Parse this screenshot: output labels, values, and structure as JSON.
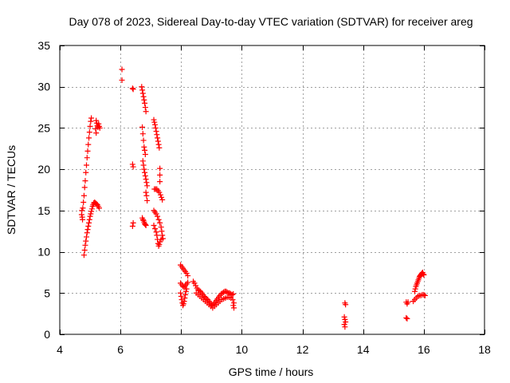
{
  "chart_data": {
    "type": "scatter",
    "title": "Day 078 of 2023, Sidereal Day-to-day VTEC variation (SDTVAR) for receiver areg",
    "xlabel": "GPS time / hours",
    "ylabel": "SDTVAR / TECUs",
    "xlim": [
      4,
      18
    ],
    "ylim": [
      0,
      35
    ],
    "x_ticks": [
      4,
      6,
      8,
      10,
      12,
      14,
      16,
      18
    ],
    "y_ticks": [
      0,
      5,
      10,
      15,
      20,
      25,
      30,
      35
    ],
    "grid": true,
    "marker": "+",
    "marker_color": "#ff0000",
    "series": [
      {
        "name": "SDTVAR",
        "points": [
          [
            4.72,
            14.5
          ],
          [
            4.73,
            15.0
          ],
          [
            4.74,
            14.2
          ],
          [
            4.75,
            13.9
          ],
          [
            4.76,
            15.3
          ],
          [
            4.78,
            16.0
          ],
          [
            4.8,
            16.8
          ],
          [
            4.82,
            17.8
          ],
          [
            4.84,
            18.6
          ],
          [
            4.86,
            19.6
          ],
          [
            4.88,
            20.5
          ],
          [
            4.9,
            21.4
          ],
          [
            4.92,
            22.2
          ],
          [
            4.94,
            23.0
          ],
          [
            4.96,
            23.8
          ],
          [
            4.98,
            24.5
          ],
          [
            5.0,
            25.2
          ],
          [
            5.02,
            25.8
          ],
          [
            5.04,
            26.2
          ],
          [
            4.8,
            9.6
          ],
          [
            4.82,
            10.2
          ],
          [
            4.84,
            10.8
          ],
          [
            4.86,
            11.3
          ],
          [
            4.88,
            11.8
          ],
          [
            4.9,
            12.3
          ],
          [
            4.92,
            12.7
          ],
          [
            4.94,
            13.1
          ],
          [
            4.96,
            13.5
          ],
          [
            4.98,
            13.9
          ],
          [
            5.0,
            14.3
          ],
          [
            5.02,
            14.6
          ],
          [
            5.04,
            14.9
          ],
          [
            5.06,
            15.2
          ],
          [
            5.08,
            15.5
          ],
          [
            5.1,
            15.7
          ],
          [
            5.12,
            15.9
          ],
          [
            5.15,
            16.0
          ],
          [
            5.18,
            15.9
          ],
          [
            5.21,
            15.8
          ],
          [
            5.24,
            15.7
          ],
          [
            5.27,
            15.5
          ],
          [
            5.3,
            15.3
          ],
          [
            5.2,
            25.9
          ],
          [
            5.22,
            25.6
          ],
          [
            5.24,
            25.3
          ],
          [
            5.26,
            25.1
          ],
          [
            5.28,
            25.5
          ],
          [
            5.3,
            25.2
          ],
          [
            5.32,
            25.0
          ],
          [
            5.2,
            24.4
          ],
          [
            5.18,
            24.9
          ],
          [
            6.05,
            32.1
          ],
          [
            6.05,
            30.8
          ],
          [
            6.4,
            29.8
          ],
          [
            6.42,
            29.7
          ],
          [
            6.4,
            20.6
          ],
          [
            6.42,
            20.3
          ],
          [
            6.42,
            13.5
          ],
          [
            6.4,
            13.1
          ],
          [
            6.7,
            30.0
          ],
          [
            6.72,
            29.6
          ],
          [
            6.74,
            29.2
          ],
          [
            6.76,
            28.8
          ],
          [
            6.78,
            28.4
          ],
          [
            6.8,
            28.0
          ],
          [
            6.82,
            27.5
          ],
          [
            6.84,
            27.0
          ],
          [
            6.72,
            25.1
          ],
          [
            6.74,
            24.3
          ],
          [
            6.76,
            23.5
          ],
          [
            6.78,
            22.7
          ],
          [
            6.8,
            22.3
          ],
          [
            6.82,
            21.8
          ],
          [
            6.74,
            21.0
          ],
          [
            6.76,
            20.5
          ],
          [
            6.78,
            20.0
          ],
          [
            6.8,
            19.6
          ],
          [
            6.82,
            19.2
          ],
          [
            6.84,
            18.8
          ],
          [
            6.86,
            18.4
          ],
          [
            6.88,
            18.0
          ],
          [
            6.84,
            17.2
          ],
          [
            6.86,
            16.8
          ],
          [
            6.88,
            16.2
          ],
          [
            6.72,
            14.1
          ],
          [
            6.74,
            13.9
          ],
          [
            6.76,
            13.8
          ],
          [
            6.78,
            13.6
          ],
          [
            6.8,
            13.4
          ],
          [
            6.82,
            13.3
          ],
          [
            6.84,
            13.2
          ],
          [
            7.1,
            26.0
          ],
          [
            7.12,
            25.7
          ],
          [
            7.14,
            25.4
          ],
          [
            7.16,
            25.0
          ],
          [
            7.18,
            24.6
          ],
          [
            7.2,
            24.2
          ],
          [
            7.22,
            23.8
          ],
          [
            7.24,
            23.4
          ],
          [
            7.26,
            23.0
          ],
          [
            7.28,
            22.6
          ],
          [
            7.3,
            20.1
          ],
          [
            7.3,
            19.3
          ],
          [
            7.3,
            18.5
          ],
          [
            7.12,
            17.6
          ],
          [
            7.16,
            17.6
          ],
          [
            7.2,
            17.6
          ],
          [
            7.24,
            17.4
          ],
          [
            7.28,
            17.2
          ],
          [
            7.32,
            16.9
          ],
          [
            7.35,
            16.6
          ],
          [
            7.38,
            16.3
          ],
          [
            7.1,
            15.0
          ],
          [
            7.14,
            14.8
          ],
          [
            7.18,
            14.6
          ],
          [
            7.22,
            14.3
          ],
          [
            7.26,
            13.9
          ],
          [
            7.3,
            13.5
          ],
          [
            7.34,
            13.0
          ],
          [
            7.36,
            12.5
          ],
          [
            7.38,
            12.0
          ],
          [
            7.4,
            11.6
          ],
          [
            7.1,
            13.2
          ],
          [
            7.14,
            12.8
          ],
          [
            7.18,
            12.4
          ],
          [
            7.2,
            12.0
          ],
          [
            7.22,
            11.5
          ],
          [
            7.24,
            11.0
          ],
          [
            7.26,
            10.7
          ],
          [
            7.28,
            10.9
          ],
          [
            7.3,
            11.2
          ],
          [
            7.34,
            11.5
          ],
          [
            7.98,
            8.4
          ],
          [
            8.02,
            8.2
          ],
          [
            8.06,
            8.0
          ],
          [
            8.1,
            7.8
          ],
          [
            8.14,
            7.6
          ],
          [
            8.18,
            7.4
          ],
          [
            8.22,
            7.1
          ],
          [
            7.98,
            6.2
          ],
          [
            8.02,
            6.0
          ],
          [
            8.06,
            5.8
          ],
          [
            8.1,
            5.7
          ],
          [
            8.14,
            5.9
          ],
          [
            8.18,
            6.1
          ],
          [
            8.22,
            6.3
          ],
          [
            7.98,
            5.0
          ],
          [
            8.0,
            4.6
          ],
          [
            8.02,
            4.2
          ],
          [
            8.04,
            3.8
          ],
          [
            8.06,
            3.5
          ],
          [
            8.08,
            3.7
          ],
          [
            8.1,
            4.0
          ],
          [
            8.12,
            4.4
          ],
          [
            8.14,
            4.8
          ],
          [
            8.16,
            5.2
          ],
          [
            8.18,
            5.5
          ],
          [
            8.4,
            6.4
          ],
          [
            8.44,
            6.2
          ],
          [
            8.48,
            5.9
          ],
          [
            8.52,
            5.6
          ],
          [
            8.56,
            5.4
          ],
          [
            8.6,
            5.3
          ],
          [
            8.64,
            5.2
          ],
          [
            8.68,
            5.0
          ],
          [
            8.72,
            4.8
          ],
          [
            8.76,
            4.6
          ],
          [
            8.8,
            4.5
          ],
          [
            8.84,
            4.3
          ],
          [
            8.88,
            4.2
          ],
          [
            8.92,
            4.0
          ],
          [
            8.96,
            3.8
          ],
          [
            9.0,
            3.6
          ],
          [
            9.04,
            3.5
          ],
          [
            9.08,
            3.7
          ],
          [
            9.12,
            3.9
          ],
          [
            9.16,
            4.1
          ],
          [
            9.2,
            4.3
          ],
          [
            9.24,
            4.5
          ],
          [
            9.28,
            4.7
          ],
          [
            9.32,
            4.9
          ],
          [
            9.36,
            5.0
          ],
          [
            9.4,
            5.1
          ],
          [
            9.44,
            5.2
          ],
          [
            9.48,
            5.2
          ],
          [
            9.52,
            5.1
          ],
          [
            9.56,
            5.0
          ],
          [
            9.6,
            5.0
          ],
          [
            9.64,
            4.9
          ],
          [
            9.68,
            4.8
          ],
          [
            9.72,
            4.9
          ],
          [
            8.5,
            5.0
          ],
          [
            8.56,
            4.8
          ],
          [
            8.62,
            4.6
          ],
          [
            8.68,
            4.4
          ],
          [
            8.74,
            4.2
          ],
          [
            8.8,
            4.0
          ],
          [
            8.86,
            3.8
          ],
          [
            8.92,
            3.6
          ],
          [
            8.98,
            3.4
          ],
          [
            9.04,
            3.2
          ],
          [
            9.1,
            3.4
          ],
          [
            9.16,
            3.6
          ],
          [
            9.22,
            3.8
          ],
          [
            9.28,
            4.0
          ],
          [
            9.34,
            4.2
          ],
          [
            9.4,
            4.3
          ],
          [
            9.46,
            4.4
          ],
          [
            9.52,
            4.5
          ],
          [
            9.58,
            4.5
          ],
          [
            9.64,
            4.4
          ],
          [
            9.7,
            4.2
          ],
          [
            9.72,
            3.5
          ],
          [
            9.74,
            3.2
          ],
          [
            9.74,
            3.8
          ],
          [
            13.4,
            3.8
          ],
          [
            13.42,
            3.6
          ],
          [
            13.38,
            2.1
          ],
          [
            13.4,
            1.8
          ],
          [
            13.42,
            1.5
          ],
          [
            13.38,
            1.2
          ],
          [
            13.4,
            0.9
          ],
          [
            15.42,
            3.9
          ],
          [
            15.45,
            3.7
          ],
          [
            15.48,
            3.9
          ],
          [
            15.42,
            2.0
          ],
          [
            15.45,
            1.9
          ],
          [
            15.65,
            4.0
          ],
          [
            15.7,
            4.2
          ],
          [
            15.75,
            4.4
          ],
          [
            15.8,
            4.6
          ],
          [
            15.85,
            4.7
          ],
          [
            15.9,
            4.7
          ],
          [
            15.95,
            4.8
          ],
          [
            16.0,
            4.8
          ],
          [
            16.04,
            4.7
          ],
          [
            15.7,
            5.2
          ],
          [
            15.72,
            5.5
          ],
          [
            15.74,
            5.8
          ],
          [
            15.76,
            6.0
          ],
          [
            15.78,
            6.2
          ],
          [
            15.8,
            6.4
          ],
          [
            15.82,
            6.6
          ],
          [
            15.84,
            6.8
          ],
          [
            15.86,
            7.0
          ],
          [
            15.88,
            7.1
          ],
          [
            15.9,
            7.2
          ],
          [
            15.92,
            7.3
          ],
          [
            15.94,
            7.4
          ],
          [
            15.96,
            7.5
          ],
          [
            15.98,
            7.3
          ],
          [
            16.0,
            7.2
          ]
        ]
      }
    ]
  }
}
